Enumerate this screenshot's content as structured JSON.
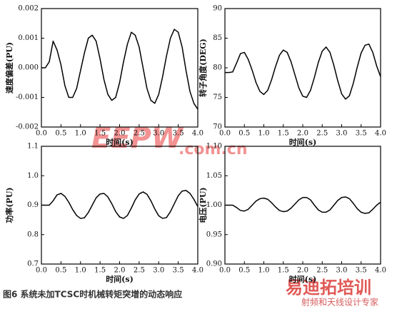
{
  "caption": "图6 系统未加TCSC时机械转矩突增的动态响应",
  "watermarks": [
    "EEPW",
    ".com.cn",
    "易迪拓培训",
    "射频和天线设计专家"
  ],
  "chart_data": [
    {
      "type": "line",
      "xlabel": "时间(s)",
      "ylabel": "速度偏差(PU)",
      "color": "#000000",
      "xlim": [
        0,
        4
      ],
      "ylim": [
        -0.002,
        0.002
      ],
      "xticks": [
        {
          "value": 0,
          "label": "0.0"
        },
        0.5,
        {
          "value": 1,
          "label": "1.0"
        },
        1.5,
        {
          "value": 2,
          "label": "2.0"
        },
        2.5,
        {
          "value": 3,
          "label": "3.0"
        },
        3.5,
        {
          "value": 4,
          "label": "4.0"
        }
      ],
      "yticks": [
        {
          "value": -0.002,
          "label": "-0.002"
        },
        {
          "value": -0.001,
          "label": "-0.001"
        },
        {
          "value": 0,
          "label": "0.000"
        },
        {
          "value": 0.001,
          "label": "0.001"
        },
        {
          "value": 0.002,
          "label": "0.002"
        }
      ],
      "x": [
        0,
        0.1,
        0.2,
        0.3,
        0.4,
        0.5,
        0.6,
        0.7,
        0.8,
        0.9,
        1,
        1.1,
        1.2,
        1.3,
        1.4,
        1.5,
        1.6,
        1.7,
        1.8,
        1.9,
        2,
        2.1,
        2.2,
        2.3,
        2.4,
        2.5,
        2.6,
        2.7,
        2.8,
        2.9,
        3,
        3.1,
        3.2,
        3.3,
        3.4,
        3.5,
        3.6,
        3.7,
        3.8,
        3.9,
        4
      ],
      "values": [
        0,
        0,
        0.0002,
        0.0009,
        0.0006,
        0.0001,
        -0.0006,
        -0.001,
        -0.001,
        -0.0007,
        -0.0001,
        0.0005,
        0.001,
        0.0011,
        0.0009,
        0.0003,
        -0.0004,
        -0.0009,
        -0.0011,
        -0.001,
        -0.0005,
        0.0002,
        0.0008,
        0.0012,
        0.0011,
        0.0007,
        0,
        -0.0007,
        -0.0011,
        -0.0012,
        -0.0009,
        -0.0003,
        0.0004,
        0.001,
        0.0013,
        0.0012,
        0.0007,
        -0.0001,
        -0.0008,
        -0.0012,
        -0.0014
      ]
    },
    {
      "type": "line",
      "xlabel": "时间(s)",
      "ylabel": "转子角度(DEG)",
      "color": "#000000",
      "xlim": [
        0,
        4
      ],
      "ylim": [
        70,
        90
      ],
      "xticks": [
        {
          "value": 0,
          "label": "0.0"
        },
        0.5,
        {
          "value": 1,
          "label": "1.0"
        },
        1.5,
        {
          "value": 2,
          "label": "2.0"
        },
        2.5,
        {
          "value": 3,
          "label": "3.0"
        },
        3.5,
        {
          "value": 4,
          "label": "4.0"
        }
      ],
      "yticks": [
        70,
        75,
        80,
        85,
        90
      ],
      "x": [
        0,
        0.1,
        0.2,
        0.3,
        0.4,
        0.5,
        0.6,
        0.7,
        0.8,
        0.9,
        1,
        1.1,
        1.2,
        1.3,
        1.4,
        1.5,
        1.6,
        1.7,
        1.8,
        1.9,
        2,
        2.1,
        2.2,
        2.3,
        2.4,
        2.5,
        2.6,
        2.7,
        2.8,
        2.9,
        3,
        3.1,
        3.2,
        3.3,
        3.4,
        3.5,
        3.6,
        3.7,
        3.8,
        3.9,
        4
      ],
      "values": [
        79.2,
        79.2,
        79.3,
        80.8,
        82.4,
        82.6,
        81.4,
        79.6,
        77.5,
        76,
        75.5,
        76.2,
        78,
        80.2,
        82.1,
        83,
        82.6,
        81,
        78.8,
        76.6,
        75.2,
        75,
        76.2,
        78.4,
        80.9,
        82.8,
        83.5,
        82.6,
        80.4,
        77.8,
        75.6,
        74.7,
        75.3,
        77.4,
        80.1,
        82.5,
        83.8,
        84,
        82.6,
        80.3,
        78.5
      ]
    },
    {
      "type": "line",
      "xlabel": "时间(s)",
      "ylabel": "功率(PU)",
      "color": "#000000",
      "xlim": [
        0,
        4
      ],
      "ylim": [
        0.7,
        1.1
      ],
      "xticks": [
        {
          "value": 0,
          "label": "0.0"
        },
        0.5,
        {
          "value": 1,
          "label": "1.0"
        },
        1.5,
        {
          "value": 2,
          "label": "2.0"
        },
        2.5,
        {
          "value": 3,
          "label": "3.0"
        },
        3.5,
        {
          "value": 4,
          "label": "4.0"
        }
      ],
      "yticks": [
        0.7,
        0.8,
        0.9,
        {
          "value": 1,
          "label": "1.0"
        },
        1.1
      ],
      "x": [
        0,
        0.1,
        0.2,
        0.3,
        0.4,
        0.5,
        0.6,
        0.7,
        0.8,
        0.9,
        1,
        1.1,
        1.2,
        1.3,
        1.4,
        1.5,
        1.6,
        1.7,
        1.8,
        1.9,
        2,
        2.1,
        2.2,
        2.3,
        2.4,
        2.5,
        2.6,
        2.7,
        2.8,
        2.9,
        3,
        3.1,
        3.2,
        3.3,
        3.4,
        3.5,
        3.6,
        3.7,
        3.8,
        3.9,
        4
      ],
      "values": [
        0.9,
        0.9,
        0.9,
        0.915,
        0.935,
        0.94,
        0.93,
        0.91,
        0.885,
        0.865,
        0.855,
        0.857,
        0.875,
        0.9,
        0.925,
        0.938,
        0.94,
        0.928,
        0.905,
        0.878,
        0.86,
        0.855,
        0.865,
        0.89,
        0.918,
        0.938,
        0.945,
        0.937,
        0.915,
        0.887,
        0.864,
        0.855,
        0.858,
        0.878,
        0.905,
        0.932,
        0.948,
        0.95,
        0.94,
        0.92,
        0.895
      ]
    },
    {
      "type": "line",
      "xlabel": "时间(s)",
      "ylabel": "电压(PU)",
      "color": "#000000",
      "xlim": [
        0,
        4
      ],
      "ylim": [
        0.9,
        1.1
      ],
      "xticks": [
        {
          "value": 0,
          "label": "0.0"
        },
        0.5,
        {
          "value": 1,
          "label": "1.0"
        },
        1.5,
        {
          "value": 2,
          "label": "2.0"
        },
        2.5,
        {
          "value": 3,
          "label": "3.0"
        },
        3.5,
        {
          "value": 4,
          "label": "4.0"
        }
      ],
      "yticks": [
        {
          "value": 0.9,
          "label": "0.90"
        },
        0.95,
        {
          "value": 1,
          "label": "1.00"
        },
        1.05,
        {
          "value": 1.1,
          "label": "1.10"
        }
      ],
      "x": [
        0,
        0.1,
        0.2,
        0.3,
        0.4,
        0.5,
        0.6,
        0.7,
        0.8,
        0.9,
        1,
        1.1,
        1.2,
        1.3,
        1.4,
        1.5,
        1.6,
        1.7,
        1.8,
        1.9,
        2,
        2.1,
        2.2,
        2.3,
        2.4,
        2.5,
        2.6,
        2.7,
        2.8,
        2.9,
        3,
        3.1,
        3.2,
        3.3,
        3.4,
        3.5,
        3.6,
        3.7,
        3.8,
        3.9,
        4
      ],
      "values": [
        1,
        1,
        1,
        0.996,
        0.991,
        0.99,
        0.993,
        1,
        1.007,
        1.011,
        1.012,
        1.01,
        1.004,
        0.997,
        0.991,
        0.989,
        0.99,
        0.995,
        1.002,
        1.009,
        1.013,
        1.013,
        1.009,
        1,
        0.992,
        0.988,
        0.988,
        0.992,
        1,
        1.008,
        1.013,
        1.014,
        1.011,
        1.003,
        0.994,
        0.988,
        0.986,
        0.987,
        0.993,
        1,
        1.005
      ]
    }
  ]
}
